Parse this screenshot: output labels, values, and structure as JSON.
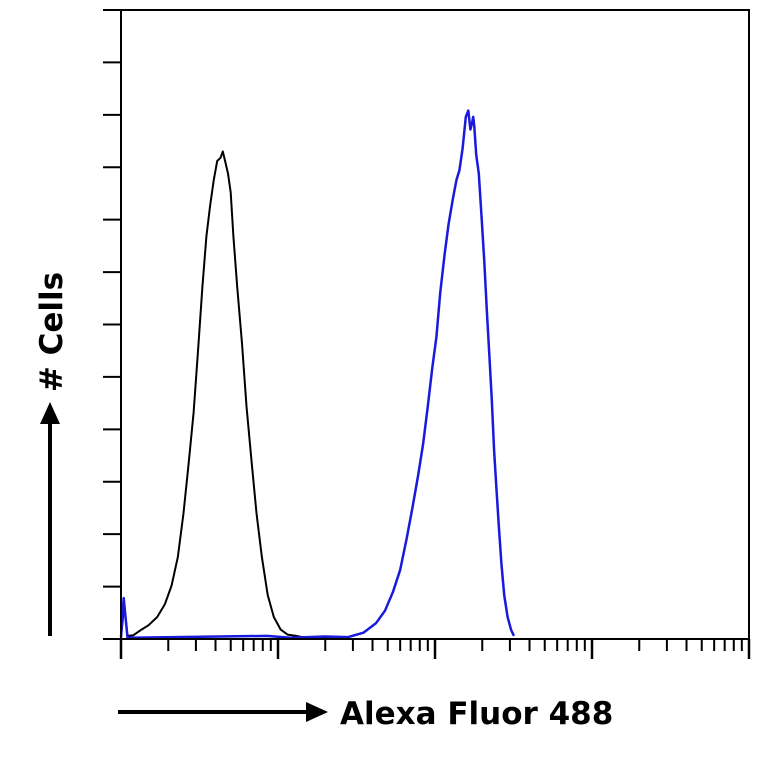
{
  "chart_data": {
    "type": "line",
    "title": "",
    "xlabel": "Alexa Fluor 488",
    "ylabel": "# Cells",
    "x_scale": "log",
    "xlim": [
      1,
      10000
    ],
    "ylim": [
      0,
      100
    ],
    "y_minor_ticks": 12,
    "grid": false,
    "legend": "none",
    "series": [
      {
        "color": "#000000",
        "points": [
          [
            1.0,
            0.2
          ],
          [
            1.05,
            5.5
          ],
          [
            1.1,
            0.5
          ],
          [
            1.2,
            0.6
          ],
          [
            1.35,
            1.5
          ],
          [
            1.5,
            2.2
          ],
          [
            1.7,
            3.5
          ],
          [
            1.9,
            5.5
          ],
          [
            2.1,
            8.5
          ],
          [
            2.3,
            13
          ],
          [
            2.5,
            20
          ],
          [
            2.7,
            28
          ],
          [
            2.9,
            36
          ],
          [
            3.1,
            46
          ],
          [
            3.3,
            56
          ],
          [
            3.5,
            64
          ],
          [
            3.7,
            69
          ],
          [
            3.9,
            73
          ],
          [
            4.1,
            76
          ],
          [
            4.3,
            76.5
          ],
          [
            4.45,
            77.5
          ],
          [
            4.6,
            76
          ],
          [
            4.8,
            74
          ],
          [
            5.0,
            71
          ],
          [
            5.2,
            64
          ],
          [
            5.5,
            56
          ],
          [
            5.9,
            47
          ],
          [
            6.3,
            37
          ],
          [
            6.8,
            28
          ],
          [
            7.3,
            20
          ],
          [
            7.9,
            13
          ],
          [
            8.6,
            7
          ],
          [
            9.4,
            3.5
          ],
          [
            10.4,
            1.5
          ],
          [
            11.5,
            0.7
          ],
          [
            13,
            0.5
          ],
          [
            15,
            0.2
          ],
          [
            18,
            0.3
          ],
          [
            22,
            0.1
          ]
        ]
      },
      {
        "color": "#1a1adc",
        "points": [
          [
            1.0,
            0.3
          ],
          [
            1.04,
            6.5
          ],
          [
            1.1,
            0.2
          ],
          [
            8.5,
            0.5
          ],
          [
            12,
            0.2
          ],
          [
            20,
            0.4
          ],
          [
            28,
            0.3
          ],
          [
            35,
            1.0
          ],
          [
            42,
            2.5
          ],
          [
            48,
            4.5
          ],
          [
            54,
            7.5
          ],
          [
            60,
            11
          ],
          [
            66,
            16
          ],
          [
            72,
            21
          ],
          [
            78,
            26
          ],
          [
            84,
            31
          ],
          [
            90,
            37
          ],
          [
            96,
            43
          ],
          [
            102,
            48
          ],
          [
            108,
            55
          ],
          [
            115,
            61
          ],
          [
            122,
            66
          ],
          [
            130,
            70
          ],
          [
            137,
            73
          ],
          [
            143,
            74.5
          ],
          [
            150,
            78
          ],
          [
            157,
            83
          ],
          [
            163,
            84
          ],
          [
            168,
            81
          ],
          [
            172,
            82
          ],
          [
            175,
            83
          ],
          [
            178,
            81.5
          ],
          [
            183,
            77
          ],
          [
            190,
            74
          ],
          [
            198,
            67
          ],
          [
            206,
            60
          ],
          [
            214,
            52
          ],
          [
            222,
            45
          ],
          [
            230,
            38
          ],
          [
            238,
            30
          ],
          [
            246,
            24
          ],
          [
            255,
            18
          ],
          [
            265,
            12
          ],
          [
            276,
            7
          ],
          [
            290,
            3.5
          ],
          [
            305,
            1.5
          ],
          [
            318,
            0.5
          ]
        ]
      }
    ]
  }
}
